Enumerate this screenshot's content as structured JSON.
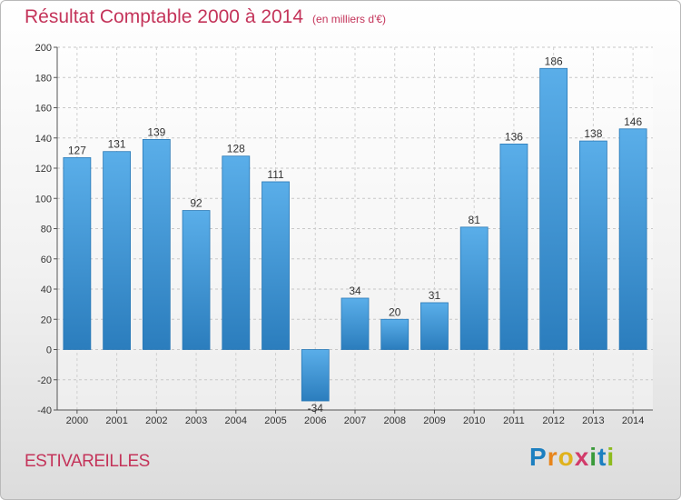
{
  "title": "Résultat Comptable 2000 à 2014",
  "subtitle": "(en milliers d'€)",
  "commune": "ESTIVAREILLES",
  "logo_text": "Proxiti",
  "colors": {
    "bar_top": "#5aaee9",
    "bar_bottom": "#2b7dbd",
    "title": "#c4345a"
  },
  "chart_data": {
    "type": "bar",
    "categories": [
      "2000",
      "2001",
      "2002",
      "2003",
      "2004",
      "2005",
      "2006",
      "2007",
      "2008",
      "2009",
      "2010",
      "2011",
      "2012",
      "2013",
      "2014"
    ],
    "values": [
      127,
      131,
      139,
      92,
      128,
      111,
      -34,
      34,
      20,
      31,
      81,
      136,
      186,
      138,
      146
    ],
    "ylim": [
      -40,
      200
    ],
    "yticks": [
      -40,
      -20,
      0,
      20,
      40,
      60,
      80,
      100,
      120,
      140,
      160,
      180,
      200
    ],
    "grid": true,
    "title": "Résultat Comptable 2000 à 2014",
    "xlabel": "",
    "ylabel": ""
  }
}
